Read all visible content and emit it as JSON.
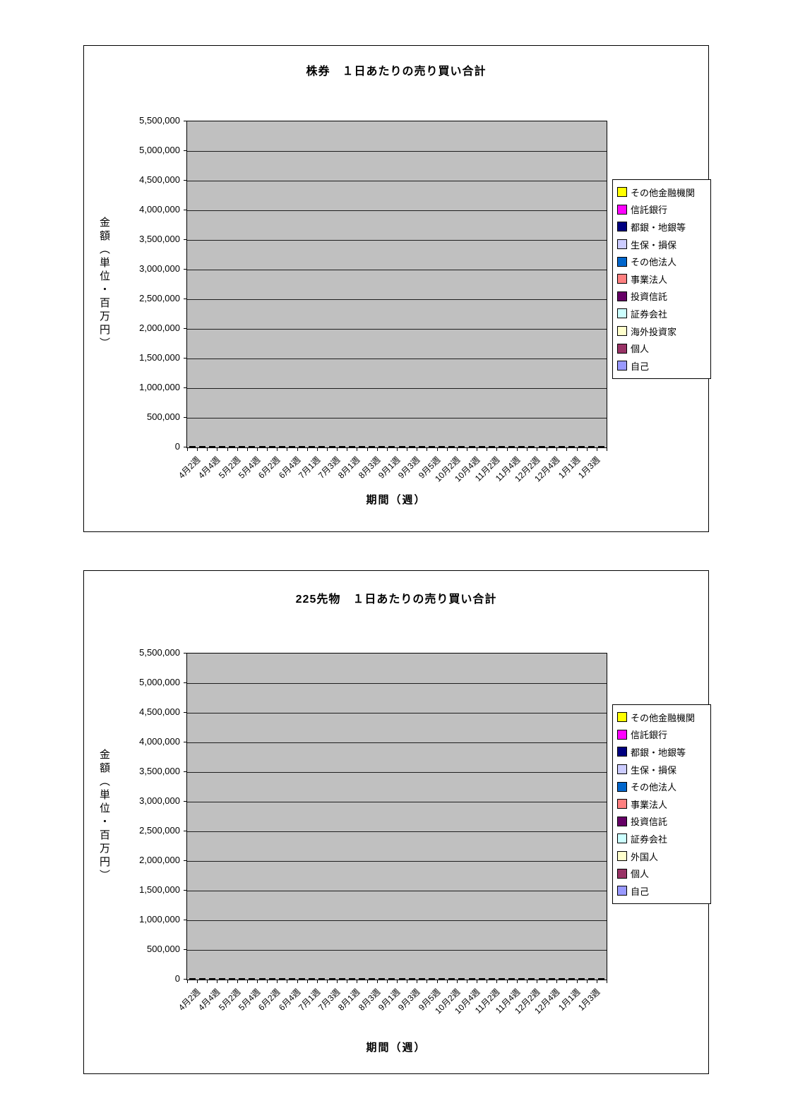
{
  "charts": [
    {
      "title": "株券　１日あたりの売り買い合計",
      "y_axis_title": "金額（単位・百万円）",
      "x_axis_title": "期間（週）",
      "chart_data": {
        "type": "bar",
        "stacked": true,
        "unit": "百万円",
        "plot_bg": "#c0c0c0",
        "grid": true,
        "legend_position": "right",
        "ylim": [
          0,
          5500000
        ],
        "y_tick_step": 500000,
        "y_tick_labels": [
          "0",
          "500,000",
          "1,000,000",
          "1,500,000",
          "2,000,000",
          "2,500,000",
          "3,000,000",
          "3,500,000",
          "4,000,000",
          "4,500,000",
          "5,000,000",
          "5,500,000"
        ],
        "n_bars": 42,
        "x_label_every": 2,
        "x_tick_labels": [
          "4月2週",
          "4月4週",
          "5月2週",
          "5月4週",
          "6月2週",
          "6月4週",
          "7月1週",
          "7月3週",
          "8月1週",
          "8月3週",
          "9月1週",
          "9月3週",
          "9月5週",
          "10月2週",
          "10月4週",
          "11月2週",
          "11月4週",
          "12月2週",
          "12月4週",
          "1月1週",
          "1月3週"
        ],
        "series": [
          {
            "name": "自己",
            "color": "#9999FF",
            "values": [
              680,
              760,
              820,
              950,
              1000,
              880,
              900,
              700,
              820,
              620,
              640,
              620,
              600,
              590,
              620,
              610,
              580,
              560,
              530,
              550,
              570,
              580,
              640,
              630,
              660,
              750,
              700,
              620,
              680,
              670,
              680,
              660,
              620,
              680,
              1000,
              760,
              620,
              450,
              700,
              790,
              740,
              720
            ]
          },
          {
            "name": "個人",
            "color": "#993366",
            "values": [
              650,
              640,
              700,
              760,
              560,
              620,
              640,
              560,
              560,
              480,
              500,
              480,
              470,
              460,
              500,
              490,
              470,
              450,
              420,
              430,
              450,
              460,
              500,
              500,
              520,
              460,
              520,
              470,
              530,
              520,
              530,
              510,
              480,
              530,
              500,
              540,
              470,
              440,
              540,
              620,
              580,
              560
            ]
          },
          {
            "name": "海外投資家",
            "color": "#FFFFCC",
            "values": [
              1415,
              1315,
              1455,
              2215,
              1735,
              1555,
              1575,
              1105,
              1305,
              925,
              985,
              965,
              905,
              885,
              1025,
              1015,
              925,
              885,
              815,
              905,
              965,
              985,
              1155,
              1155,
              1215,
              1545,
              1345,
              995,
              1275,
              1255,
              1265,
              1235,
              1115,
              1295,
              1455,
              1365,
              1075,
              555,
              1265,
              1515,
              1395,
              1375
            ]
          },
          {
            "name": "証券会社",
            "color": "#CCFFFF",
            "constant": 60
          },
          {
            "name": "投資信託",
            "color": "#660066",
            "constant": 50
          },
          {
            "name": "事業法人",
            "color": "#FF8080",
            "constant": 25
          },
          {
            "name": "その他法人",
            "color": "#0066CC",
            "constant": 10
          },
          {
            "name": "生保・損保",
            "color": "#CCCCFF",
            "constant": 15
          },
          {
            "name": "都銀・地銀等",
            "color": "#000080",
            "constant": 30
          },
          {
            "name": "信託銀行",
            "color": "#FF00FF",
            "values": [
              150,
              140,
              200,
              220,
              200,
              160,
              180,
              150,
              170,
              130,
              130,
              130,
              120,
              120,
              130,
              130,
              120,
              120,
              110,
              110,
              120,
              120,
              130,
              130,
              140,
              160,
              150,
              130,
              150,
              140,
              140,
              140,
              130,
              140,
              170,
              150,
              130,
              100,
              150,
              170,
              160,
              150
            ]
          },
          {
            "name": "その他金融機関",
            "color": "#FFFF00",
            "constant": 15
          }
        ]
      }
    },
    {
      "title": "225先物　１日あたりの売り買い合計",
      "y_axis_title": "金額（単位・百万円）",
      "x_axis_title": "期間（週）",
      "chart_data": {
        "type": "bar",
        "stacked": true,
        "unit": "百万円",
        "plot_bg": "#c0c0c0",
        "grid": true,
        "legend_position": "right",
        "ylim": [
          0,
          5500000
        ],
        "y_tick_step": 500000,
        "y_tick_labels": [
          "0",
          "500,000",
          "1,000,000",
          "1,500,000",
          "2,000,000",
          "2,500,000",
          "3,000,000",
          "3,500,000",
          "4,000,000",
          "4,500,000",
          "5,000,000",
          "5,500,000"
        ],
        "n_bars": 42,
        "x_label_every": 2,
        "x_tick_labels": [
          "4月2週",
          "4月4週",
          "5月2週",
          "5月4週",
          "6月2週",
          "6月4週",
          "7月1週",
          "7月3週",
          "8月1週",
          "8月3週",
          "9月1週",
          "9月3週",
          "9月5週",
          "10月2週",
          "10月4週",
          "11月2週",
          "11月4週",
          "12月2週",
          "12月4週",
          "1月1週",
          "1月3週"
        ],
        "series": [
          {
            "name": "自己",
            "color": "#9999FF",
            "values": [
              1050,
              980,
              950,
              1430,
              1150,
              1170,
              1130,
              900,
              1600,
              500,
              620,
              640,
              600,
              560,
              620,
              540,
              650,
              680,
              630,
              660,
              700,
              1520,
              720,
              620,
              640,
              710,
              600,
              540,
              510,
              580,
              580,
              660,
              540,
              860,
              1440,
              420,
              360,
              330,
              480,
              560,
              620,
              680
            ]
          },
          {
            "name": "個人",
            "color": "#993366",
            "values": [
              420,
              450,
              430,
              390,
              500,
              480,
              520,
              420,
              460,
              350,
              380,
              400,
              380,
              360,
              380,
              360,
              400,
              420,
              400,
              410,
              430,
              420,
              440,
              400,
              410,
              430,
              390,
              350,
              340,
              370,
              370,
              410,
              360,
              440,
              400,
              300,
              260,
              240,
              320,
              370,
              400,
              430
            ]
          },
          {
            "name": "外国人",
            "color": "#FFFFCC",
            "values": [
              920,
              1030,
              1030,
              1240,
              2170,
              2070,
              1960,
              1620,
              2640,
              700,
              850,
              1240,
              1110,
              1020,
              1120,
              950,
              1300,
              1390,
              1260,
              1340,
              1510,
              2490,
              1550,
              1240,
              1270,
              1490,
              1230,
              980,
              900,
              1070,
              1070,
              1330,
              970,
              1620,
              2380,
              685,
              525,
              455,
              775,
              970,
              1140,
              1280
            ]
          },
          {
            "name": "証券会社",
            "color": "#CCFFFF",
            "constant": 70
          },
          {
            "name": "投資信託",
            "color": "#660066",
            "values": [
              50,
              50,
              50,
              70,
              60,
              60,
              60,
              60,
              170,
              40,
              40,
              50,
              50,
              40,
              50,
              40,
              50,
              50,
              50,
              50,
              60,
              180,
              60,
              50,
              50,
              60,
              50,
              40,
              40,
              40,
              40,
              50,
              40,
              60,
              200,
              30,
              30,
              30,
              40,
              40,
              50,
              50
            ]
          },
          {
            "name": "事業法人",
            "color": "#FF8080",
            "constant": 20
          },
          {
            "name": "その他法人",
            "color": "#0066CC",
            "constant": 10
          },
          {
            "name": "生保・損保",
            "color": "#CCCCFF",
            "constant": 15
          },
          {
            "name": "都銀・地銀等",
            "color": "#000080",
            "constant": 60
          },
          {
            "name": "信託銀行",
            "color": "#FF00FF",
            "values": [
              20,
              30,
              30,
              80,
              30,
              30,
              40,
              30,
              120,
              20,
              20,
              20,
              20,
              20,
              20,
              20,
              20,
              20,
              20,
              20,
              20,
              120,
              30,
              20,
              20,
              20,
              20,
              20,
              20,
              20,
              20,
              30,
              20,
              30,
              140,
              15,
              15,
              15,
              15,
              20,
              20,
              20
            ]
          },
          {
            "name": "その他金融機関",
            "color": "#FFFF00",
            "constant": 15
          }
        ]
      }
    }
  ]
}
